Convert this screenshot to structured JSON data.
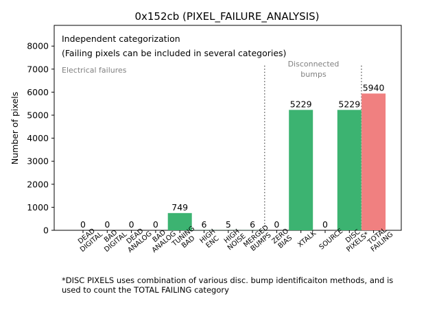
{
  "chart_data": {
    "type": "bar",
    "title": "0x152cb (PIXEL_FAILURE_ANALYSIS)",
    "xlabel": "",
    "ylabel": "Number of pixels",
    "ylim": [
      0,
      8900
    ],
    "yticks": [
      0,
      1000,
      2000,
      3000,
      4000,
      5000,
      6000,
      7000,
      8000
    ],
    "grid": false,
    "categories": [
      "DEAD\nDIGITAL",
      "BAD\nDIGITAL",
      "DEAD\nANALOG",
      "BAD\nANALOG",
      "TUNING\nBAD",
      "HIGH\nENC",
      "HIGH\nNOISE",
      "MERGED\nBUMPS",
      "ZERO\nBIAS",
      "XTALK",
      "SOURCE",
      "DISC\nPIXELS*",
      "TOTAL\nFAILING"
    ],
    "values": [
      0,
      0,
      0,
      0,
      749,
      6,
      5,
      6,
      0,
      5229,
      0,
      5229,
      5940
    ],
    "data_labels": [
      "0",
      "0",
      "0",
      "0",
      "749",
      "6",
      "5",
      "6",
      "0",
      "5229",
      "0",
      "5229",
      "5940"
    ],
    "bar_colors": [
      "#3cb371",
      "#3cb371",
      "#3cb371",
      "#3cb371",
      "#3cb371",
      "#3cb371",
      "#3cb371",
      "#3cb371",
      "#3cb371",
      "#3cb371",
      "#3cb371",
      "#3cb371",
      "#f08080"
    ],
    "annotations": {
      "header_line1": "Independent categorization",
      "header_line2": "(Failing pixels can be included in several categories)",
      "group_electrical": "Electrical failures",
      "group_disconnected_line1": "Disconnected",
      "group_disconnected_line2": "bumps"
    },
    "separator_after_index": [
      7,
      11
    ]
  },
  "footnote": {
    "line1": "*DISC PIXELS uses combination of various disc. bump identificaiton methods, and is",
    "line2": "used to count the TOTAL FAILING category"
  }
}
